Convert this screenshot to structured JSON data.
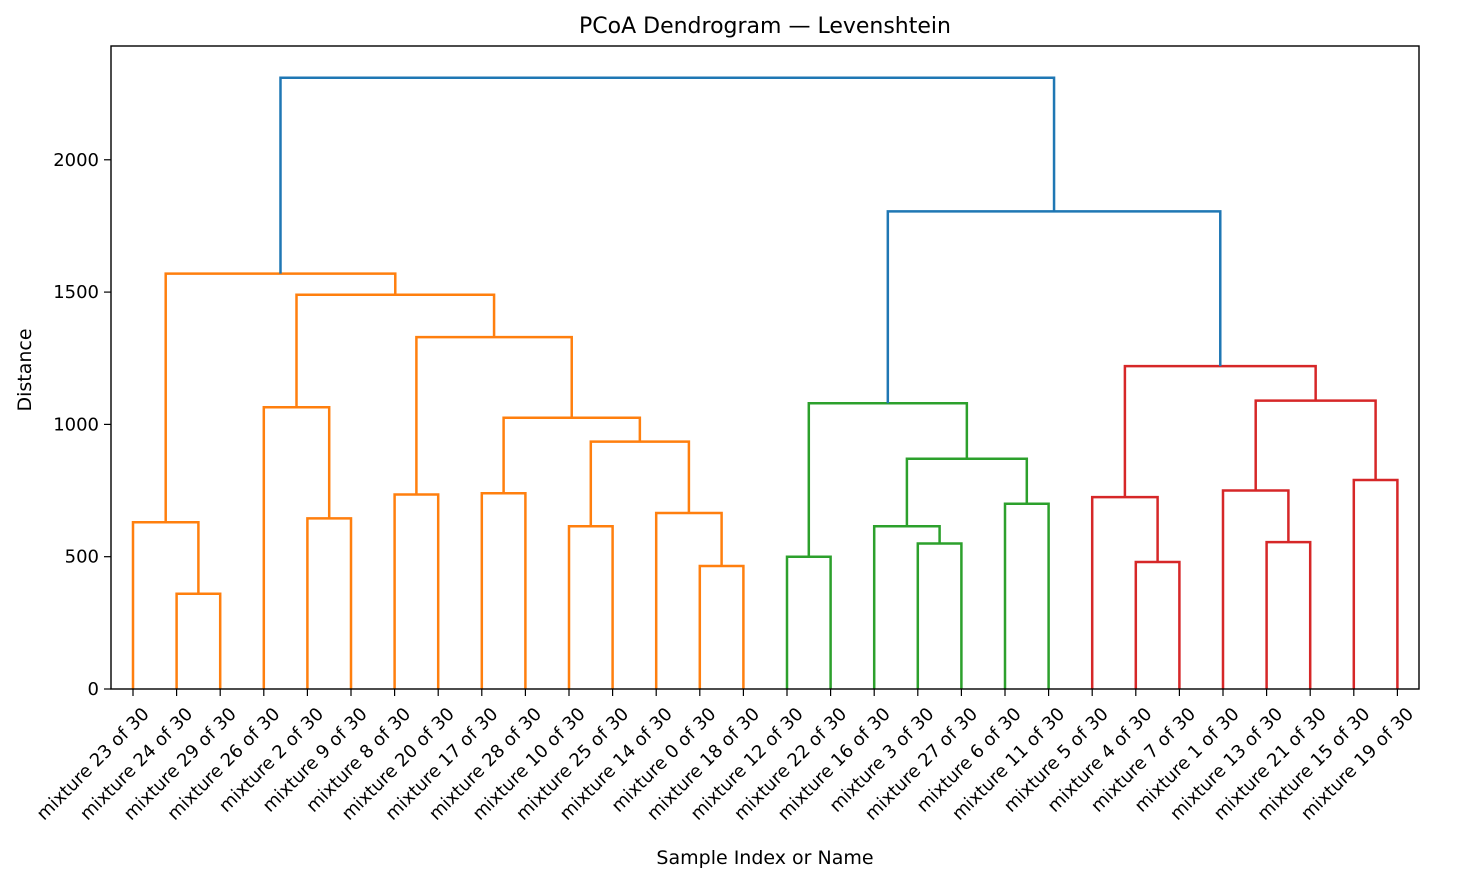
{
  "chart_data": {
    "type": "dendrogram",
    "title": "PCoA Dendrogram — Levenshtein",
    "xlabel": "Sample Index or Name",
    "ylabel": "Distance",
    "ylim": [
      0,
      2430
    ],
    "yticks": [
      0,
      500,
      1000,
      1500,
      2000
    ],
    "grid": false,
    "leaves": [
      "mixture 23 of 30",
      "mixture 24 of 30",
      "mixture 29 of 30",
      "mixture 26 of 30",
      "mixture 2 of 30",
      "mixture 9 of 30",
      "mixture 8 of 30",
      "mixture 20 of 30",
      "mixture 17 of 30",
      "mixture 28 of 30",
      "mixture 10 of 30",
      "mixture 25 of 30",
      "mixture 14 of 30",
      "mixture 0 of 30",
      "mixture 18 of 30",
      "mixture 12 of 30",
      "mixture 22 of 30",
      "mixture 16 of 30",
      "mixture 3 of 30",
      "mixture 27 of 30",
      "mixture 6 of 30",
      "mixture 11 of 30",
      "mixture 5 of 30",
      "mixture 4 of 30",
      "mixture 7 of 30",
      "mixture 1 of 30",
      "mixture 13 of 30",
      "mixture 21 of 30",
      "mixture 15 of 30",
      "mixture 19 of 30"
    ],
    "colors": {
      "orange": "#ff7f0e",
      "green": "#2ca02c",
      "red": "#d62728",
      "blue": "#1f77b4"
    },
    "merges": [
      {
        "a": 1,
        "b": 2,
        "h": 360,
        "color": "orange"
      },
      {
        "a": 0,
        "b": 30,
        "h": 630,
        "color": "orange"
      },
      {
        "a": 4,
        "b": 5,
        "h": 645,
        "color": "orange"
      },
      {
        "a": 3,
        "b": 32,
        "h": 1065,
        "color": "orange"
      },
      {
        "a": 6,
        "b": 7,
        "h": 735,
        "color": "orange"
      },
      {
        "a": 8,
        "b": 9,
        "h": 740,
        "color": "orange"
      },
      {
        "a": 10,
        "b": 11,
        "h": 615,
        "color": "orange"
      },
      {
        "a": 13,
        "b": 14,
        "h": 465,
        "color": "orange"
      },
      {
        "a": 12,
        "b": 37,
        "h": 665,
        "color": "orange"
      },
      {
        "a": 36,
        "b": 38,
        "h": 935,
        "color": "orange"
      },
      {
        "a": 35,
        "b": 39,
        "h": 1025,
        "color": "orange"
      },
      {
        "a": 34,
        "b": 40,
        "h": 1330,
        "color": "orange"
      },
      {
        "a": 33,
        "b": 41,
        "h": 1490,
        "color": "orange"
      },
      {
        "a": 31,
        "b": 42,
        "h": 1570,
        "color": "orange"
      },
      {
        "a": 15,
        "b": 16,
        "h": 500,
        "color": "green"
      },
      {
        "a": 18,
        "b": 19,
        "h": 550,
        "color": "green"
      },
      {
        "a": 17,
        "b": 45,
        "h": 615,
        "color": "green"
      },
      {
        "a": 20,
        "b": 21,
        "h": 700,
        "color": "green"
      },
      {
        "a": 46,
        "b": 47,
        "h": 870,
        "color": "green"
      },
      {
        "a": 44,
        "b": 48,
        "h": 1080,
        "color": "green"
      },
      {
        "a": 23,
        "b": 24,
        "h": 480,
        "color": "red"
      },
      {
        "a": 22,
        "b": 50,
        "h": 725,
        "color": "red"
      },
      {
        "a": 26,
        "b": 27,
        "h": 555,
        "color": "red"
      },
      {
        "a": 25,
        "b": 52,
        "h": 750,
        "color": "red"
      },
      {
        "a": 28,
        "b": 29,
        "h": 790,
        "color": "red"
      },
      {
        "a": 53,
        "b": 54,
        "h": 1090,
        "color": "red"
      },
      {
        "a": 51,
        "b": 55,
        "h": 1220,
        "color": "red"
      },
      {
        "a": 49,
        "b": 56,
        "h": 1805,
        "color": "blue"
      },
      {
        "a": 43,
        "b": 57,
        "h": 2310,
        "color": "blue"
      }
    ]
  }
}
